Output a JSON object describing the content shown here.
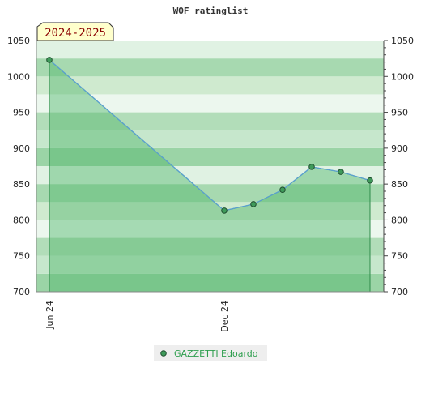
{
  "chart_data": {
    "type": "area",
    "title": "WOF ratinglist",
    "badge": "2024-2025",
    "x_tick_labels": [
      "Jun 24",
      "Dec 24"
    ],
    "y_ticks": [
      700,
      750,
      800,
      850,
      900,
      950,
      1000,
      1050
    ],
    "ylim": [
      700,
      1050
    ],
    "series": [
      {
        "name": "GAZZETTI Edoardo",
        "points": [
          {
            "x": "2024-06",
            "y": 1023
          },
          {
            "x": "2024-12",
            "y": 813
          },
          {
            "x": "2025-01",
            "y": 822
          },
          {
            "x": "2025-02",
            "y": 842
          },
          {
            "x": "2025-03",
            "y": 874
          },
          {
            "x": "2025-04",
            "y": 867
          },
          {
            "x": "2025-05",
            "y": 855
          }
        ]
      }
    ],
    "grid": true,
    "legend_position": "bottom",
    "colors": {
      "line": "#5aa0d0",
      "fill": "#4fb56a",
      "marker_fill": "#3f9a5a",
      "legend_bg": "#eeeeee",
      "badge_bg": "#ffffcc",
      "badge_text": "#8b0000"
    }
  }
}
